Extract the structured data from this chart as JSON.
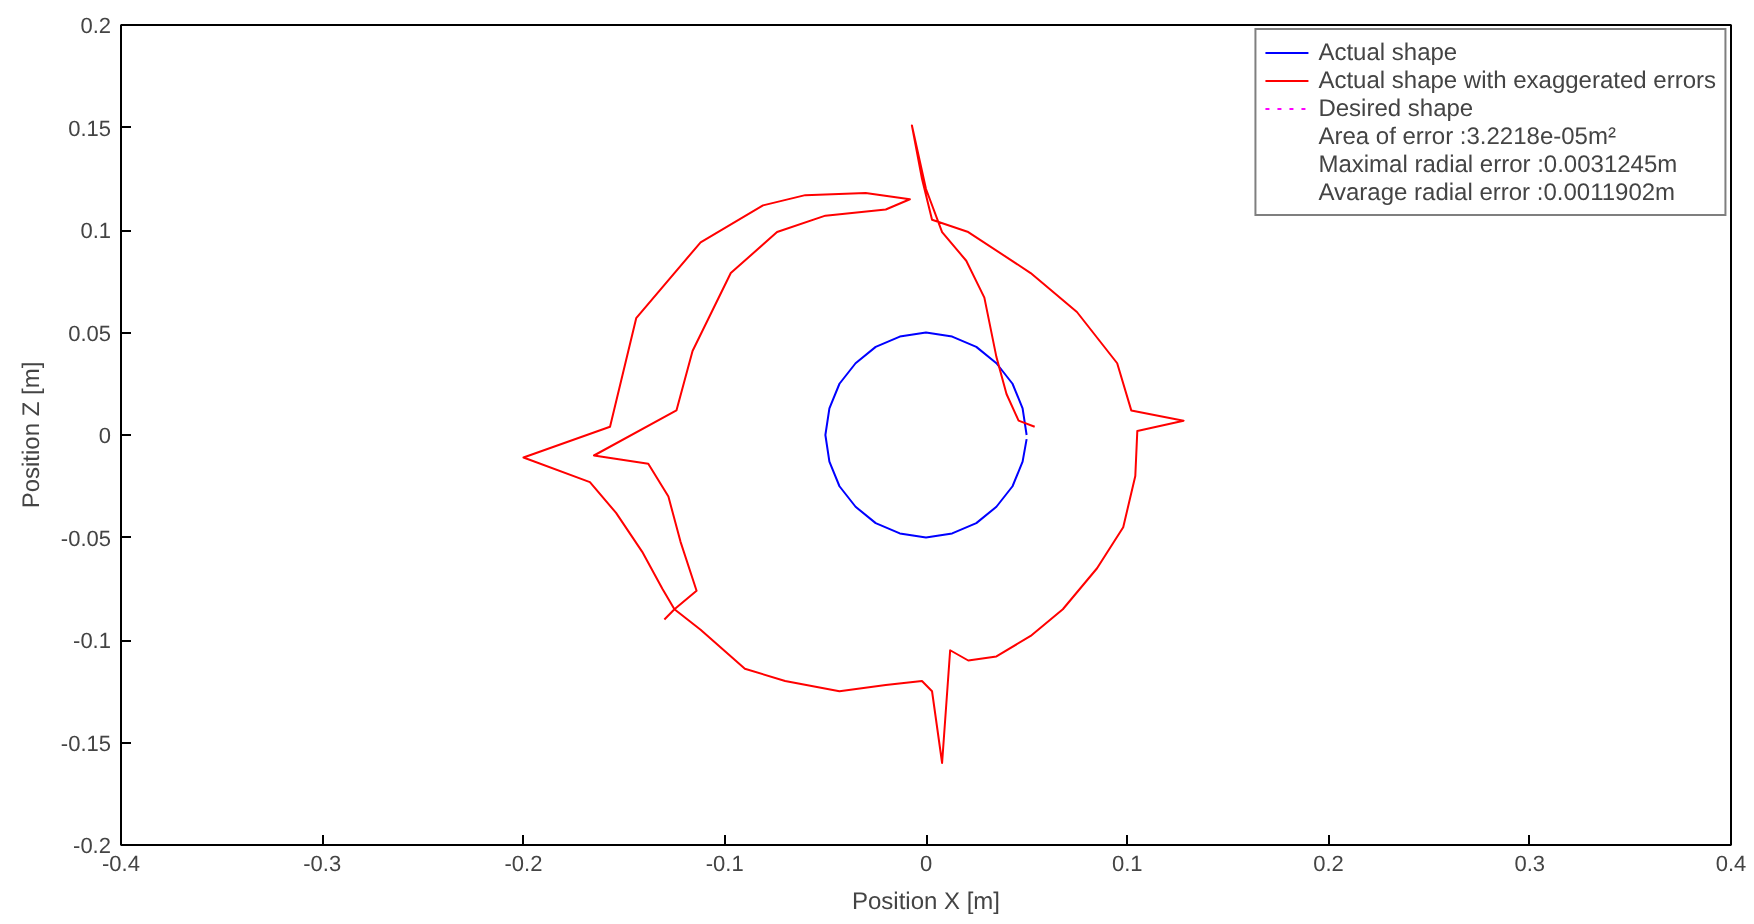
{
  "chart_data": {
    "type": "line",
    "xlabel": "Position X [m]",
    "ylabel": "Position Z [m]",
    "xlim": [
      -0.4,
      0.4
    ],
    "ylim": [
      -0.2,
      0.2
    ],
    "xticks": [
      -0.4,
      -0.3,
      -0.2,
      -0.1,
      0,
      0.1,
      0.2,
      0.3,
      0.4
    ],
    "yticks": [
      -0.2,
      -0.15,
      -0.1,
      -0.05,
      0,
      0.05,
      0.1,
      0.15,
      0.2
    ],
    "grid": false,
    "legend": "top right",
    "series": [
      {
        "name": "Actual shape",
        "color": "#0000ff",
        "x": [
          0.05,
          0.048,
          0.043,
          0.035,
          0.025,
          0.013,
          0,
          -0.013,
          -0.025,
          -0.035,
          -0.043,
          -0.048,
          -0.05,
          -0.048,
          -0.043,
          -0.035,
          -0.025,
          -0.013,
          0,
          0.013,
          0.025,
          0.035,
          0.043,
          0.048,
          0.05
        ],
        "values": [
          0,
          0.013,
          0.025,
          0.035,
          0.043,
          0.048,
          0.05,
          0.048,
          0.043,
          0.035,
          0.025,
          0.013,
          0,
          -0.013,
          -0.025,
          -0.035,
          -0.043,
          -0.048,
          -0.05,
          -0.048,
          -0.043,
          -0.035,
          -0.025,
          -0.013,
          -0.002
        ]
      },
      {
        "name": "Actual shape with exaggerated errors",
        "color": "#ff0000",
        "x": [
          0.054,
          0.046,
          0.04,
          0.035,
          0.029,
          0.02,
          0.008,
          0.0,
          -0.007,
          -0.002,
          0.003,
          0.021,
          0.052,
          0.075,
          0.095,
          0.102,
          0.128,
          0.105,
          0.104,
          0.098,
          0.085,
          0.068,
          0.052,
          0.035,
          0.021,
          0.012,
          0.008,
          0.003,
          -0.002,
          -0.02,
          -0.043,
          -0.07,
          -0.09,
          -0.112,
          -0.125,
          -0.114,
          -0.122,
          -0.128,
          -0.138,
          -0.165,
          -0.124,
          -0.116,
          -0.097,
          -0.074,
          -0.05,
          -0.02,
          -0.008,
          -0.03,
          -0.06,
          -0.081,
          -0.112,
          -0.144,
          -0.157,
          -0.2,
          -0.167,
          -0.154,
          -0.141,
          -0.131,
          -0.125,
          -0.13
        ],
        "values": [
          0.004,
          0.007,
          0.02,
          0.038,
          0.067,
          0.085,
          0.099,
          0.12,
          0.151,
          0.125,
          0.105,
          0.099,
          0.079,
          0.06,
          0.035,
          0.012,
          0.007,
          0.002,
          -0.02,
          -0.045,
          -0.065,
          -0.085,
          -0.098,
          -0.108,
          -0.11,
          -0.105,
          -0.16,
          -0.125,
          -0.12,
          -0.122,
          -0.125,
          -0.12,
          -0.114,
          -0.095,
          -0.085,
          -0.076,
          -0.052,
          -0.03,
          -0.014,
          -0.01,
          0.012,
          0.041,
          0.079,
          0.099,
          0.107,
          0.11,
          0.115,
          0.118,
          0.117,
          0.112,
          0.094,
          0.057,
          0.004,
          -0.011,
          -0.023,
          -0.038,
          -0.057,
          -0.075,
          -0.085,
          -0.09
        ]
      },
      {
        "name": "Desired shape",
        "color": "#ff00ff",
        "line_style": "dotted"
      }
    ],
    "annotations": [
      "Area of error :3.2218e-05m²",
      "Maximal radial error :0.0031245m",
      "Avarage radial error :0.0011902m"
    ]
  }
}
